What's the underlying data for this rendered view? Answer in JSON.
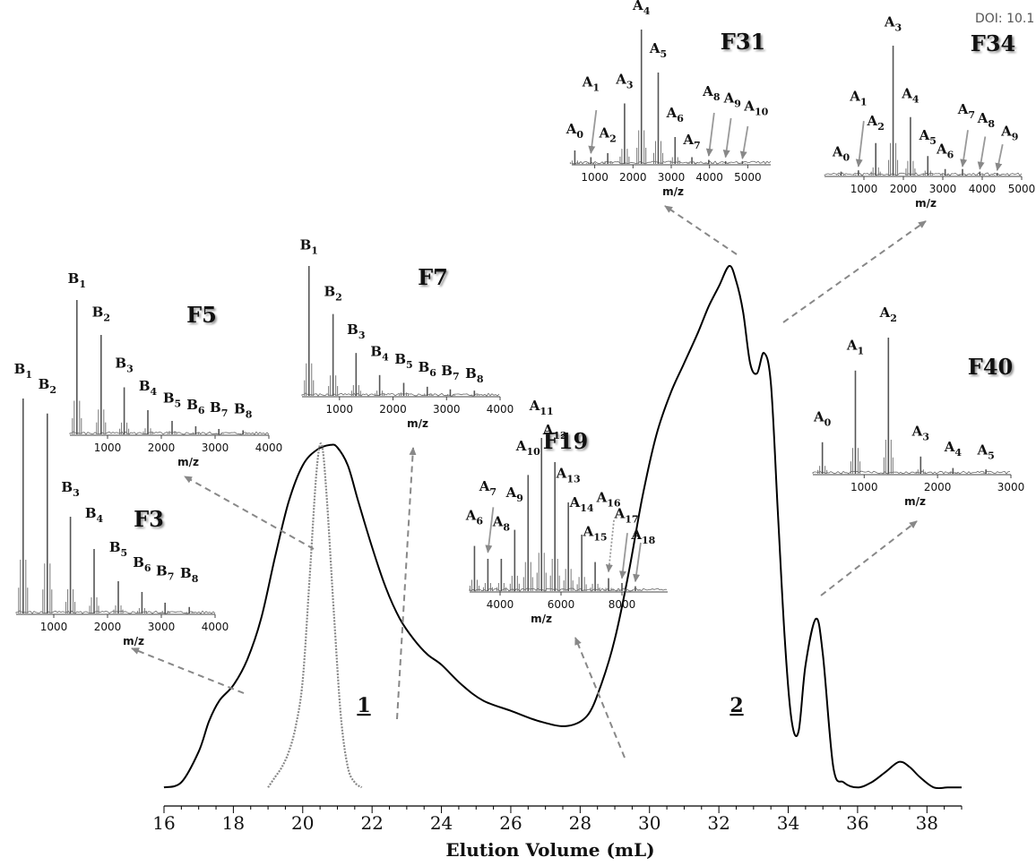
{
  "doi_text": "DOI: 10.1",
  "chart_data": [
    {
      "type": "line",
      "xlabel": "Elution Volume (mL)",
      "xlim": [
        16,
        39
      ],
      "x_ticks": [
        "16",
        "18",
        "20",
        "22",
        "24",
        "26",
        "28",
        "30",
        "32",
        "34",
        "36",
        "38"
      ],
      "grid": false,
      "peak_labels": [
        "1",
        "2"
      ],
      "series": [
        {
          "color": "#000000",
          "x": [
            16.0,
            16.5,
            17.0,
            17.3,
            17.6,
            18.0,
            18.4,
            18.8,
            19.2,
            19.6,
            20.0,
            20.4,
            20.8,
            21.0,
            21.3,
            21.6,
            22.0,
            22.4,
            22.8,
            23.2,
            23.6,
            24.0,
            24.6,
            25.2,
            26.0,
            26.8,
            27.6,
            28.2,
            28.6,
            29.0,
            29.4,
            29.8,
            30.2,
            30.6,
            31.0,
            31.4,
            31.7,
            32.0,
            32.3,
            32.5,
            32.7,
            32.9,
            33.1,
            33.3,
            33.5,
            33.7,
            33.9,
            34.1,
            34.3,
            34.5,
            34.8,
            35.0,
            35.3,
            35.6,
            36.0,
            36.4,
            36.8,
            37.2,
            37.5,
            37.8,
            38.2,
            38.6,
            39.0
          ],
          "y": [
            0.01,
            0.02,
            0.08,
            0.14,
            0.18,
            0.21,
            0.26,
            0.34,
            0.46,
            0.57,
            0.64,
            0.67,
            0.68,
            0.675,
            0.64,
            0.57,
            0.48,
            0.4,
            0.34,
            0.3,
            0.27,
            0.25,
            0.21,
            0.18,
            0.16,
            0.14,
            0.13,
            0.15,
            0.21,
            0.3,
            0.43,
            0.58,
            0.7,
            0.78,
            0.84,
            0.9,
            0.95,
            0.99,
            1.03,
            1.0,
            0.94,
            0.84,
            0.82,
            0.86,
            0.8,
            0.55,
            0.3,
            0.14,
            0.12,
            0.25,
            0.34,
            0.27,
            0.05,
            0.02,
            0.01,
            0.02,
            0.04,
            0.06,
            0.05,
            0.03,
            0.01,
            0.01,
            0.01
          ]
        },
        {
          "color": "#888888",
          "x": [
            19.0,
            19.2,
            19.4,
            19.6,
            19.8,
            20.0,
            20.2,
            20.4,
            20.55,
            20.7,
            20.9,
            21.1,
            21.3,
            21.5,
            21.7
          ],
          "y": [
            0.01,
            0.03,
            0.05,
            0.08,
            0.13,
            0.22,
            0.42,
            0.63,
            0.68,
            0.57,
            0.35,
            0.15,
            0.05,
            0.02,
            0.01
          ]
        }
      ],
      "arrows": [
        "F3",
        "F5",
        "F7",
        "F19",
        "F31",
        "F34",
        "F40"
      ]
    },
    {
      "type": "bar",
      "name": "F3",
      "title": "F3",
      "xlim": [
        300,
        4000
      ],
      "x_ticks": [
        "1000",
        "2000",
        "3000",
        "4000"
      ],
      "xlabel": "m/z",
      "peaks": [
        {
          "x": 430,
          "h": 1.0
        },
        {
          "x": 880,
          "h": 0.93
        },
        {
          "x": 1310,
          "h": 0.45
        },
        {
          "x": 1750,
          "h": 0.3
        },
        {
          "x": 2200,
          "h": 0.15
        },
        {
          "x": 2640,
          "h": 0.1
        },
        {
          "x": 3070,
          "h": 0.05
        },
        {
          "x": 3520,
          "h": 0.03
        }
      ],
      "labels": [
        {
          "base": "B",
          "sub": "1",
          "x": 430,
          "level": 1.1
        },
        {
          "base": "B",
          "sub": "2",
          "x": 880,
          "level": 1.03
        },
        {
          "base": "B",
          "sub": "3",
          "x": 1310,
          "level": 0.55
        },
        {
          "base": "B",
          "sub": "4",
          "x": 1750,
          "level": 0.43
        },
        {
          "base": "B",
          "sub": "5",
          "x": 2200,
          "level": 0.27
        },
        {
          "base": "B",
          "sub": "6",
          "x": 2640,
          "level": 0.2
        },
        {
          "base": "B",
          "sub": "7",
          "x": 3070,
          "level": 0.16
        },
        {
          "base": "B",
          "sub": "8",
          "x": 3520,
          "level": 0.15
        }
      ]
    },
    {
      "type": "bar",
      "name": "F5",
      "title": "F5",
      "xlim": [
        300,
        4000
      ],
      "x_ticks": [
        "1000",
        "2000",
        "3000",
        "4000"
      ],
      "xlabel": "m/z",
      "peaks": [
        {
          "x": 430,
          "h": 1.0
        },
        {
          "x": 880,
          "h": 0.74
        },
        {
          "x": 1310,
          "h": 0.35
        },
        {
          "x": 1750,
          "h": 0.18
        },
        {
          "x": 2200,
          "h": 0.1
        },
        {
          "x": 2640,
          "h": 0.06
        },
        {
          "x": 3070,
          "h": 0.04
        },
        {
          "x": 3520,
          "h": 0.03
        }
      ],
      "labels": [
        {
          "base": "B",
          "sub": "1",
          "x": 430,
          "level": 1.1
        },
        {
          "base": "B",
          "sub": "2",
          "x": 880,
          "level": 0.85
        },
        {
          "base": "B",
          "sub": "3",
          "x": 1310,
          "level": 0.47
        },
        {
          "base": "B",
          "sub": "4",
          "x": 1750,
          "level": 0.3
        },
        {
          "base": "B",
          "sub": "5",
          "x": 2200,
          "level": 0.21
        },
        {
          "base": "B",
          "sub": "6",
          "x": 2640,
          "level": 0.16
        },
        {
          "base": "B",
          "sub": "7",
          "x": 3070,
          "level": 0.14
        },
        {
          "base": "B",
          "sub": "8",
          "x": 3520,
          "level": 0.13
        }
      ]
    },
    {
      "type": "bar",
      "name": "F7",
      "title": "F7",
      "xlim": [
        300,
        4000
      ],
      "x_ticks": [
        "1000",
        "2000",
        "3000",
        "4000"
      ],
      "xlabel": "m/z",
      "peaks": [
        {
          "x": 430,
          "h": 1.0
        },
        {
          "x": 880,
          "h": 0.63
        },
        {
          "x": 1310,
          "h": 0.33
        },
        {
          "x": 1750,
          "h": 0.16
        },
        {
          "x": 2200,
          "h": 0.1
        },
        {
          "x": 2640,
          "h": 0.07
        },
        {
          "x": 3070,
          "h": 0.05
        },
        {
          "x": 3520,
          "h": 0.04
        }
      ],
      "labels": [
        {
          "base": "B",
          "sub": "1",
          "x": 430,
          "level": 1.1
        },
        {
          "base": "B",
          "sub": "2",
          "x": 880,
          "level": 0.74
        },
        {
          "base": "B",
          "sub": "3",
          "x": 1310,
          "level": 0.45
        },
        {
          "base": "B",
          "sub": "4",
          "x": 1750,
          "level": 0.28
        },
        {
          "base": "B",
          "sub": "5",
          "x": 2200,
          "level": 0.22
        },
        {
          "base": "B",
          "sub": "6",
          "x": 2640,
          "level": 0.16
        },
        {
          "base": "B",
          "sub": "7",
          "x": 3070,
          "level": 0.13
        },
        {
          "base": "B",
          "sub": "8",
          "x": 3520,
          "level": 0.11
        }
      ]
    },
    {
      "type": "bar",
      "name": "F19",
      "title": "F19",
      "xlim": [
        3000,
        9500
      ],
      "x_ticks": [
        "4000",
        "6000",
        "8000"
      ],
      "xlabel": "m/z",
      "peaks": [
        {
          "x": 3160,
          "h": 0.28
        },
        {
          "x": 3600,
          "h": 0.2
        },
        {
          "x": 4040,
          "h": 0.2
        },
        {
          "x": 4480,
          "h": 0.38
        },
        {
          "x": 4920,
          "h": 0.72
        },
        {
          "x": 5360,
          "h": 0.95
        },
        {
          "x": 5800,
          "h": 0.8
        },
        {
          "x": 6240,
          "h": 0.55
        },
        {
          "x": 6680,
          "h": 0.35
        },
        {
          "x": 7120,
          "h": 0.18
        },
        {
          "x": 7560,
          "h": 0.08
        },
        {
          "x": 8000,
          "h": 0.05
        },
        {
          "x": 8440,
          "h": 0.03
        }
      ],
      "labels": [
        {
          "base": "A",
          "sub": "6",
          "x": 3160,
          "level": 0.42
        },
        {
          "base": "A",
          "sub": "7",
          "x": 3600,
          "level": 0.6
        },
        {
          "base": "A",
          "sub": "8",
          "x": 4040,
          "level": 0.38
        },
        {
          "base": "A",
          "sub": "9",
          "x": 4480,
          "level": 0.56
        },
        {
          "base": "A",
          "sub": "10",
          "x": 4920,
          "level": 0.85
        },
        {
          "base": "A",
          "sub": "11",
          "x": 5360,
          "level": 1.1
        },
        {
          "base": "A",
          "sub": "12",
          "x": 5800,
          "level": 0.95
        },
        {
          "base": "A",
          "sub": "13",
          "x": 6240,
          "level": 0.68
        },
        {
          "base": "A",
          "sub": "14",
          "x": 6680,
          "level": 0.5
        },
        {
          "base": "A",
          "sub": "15",
          "x": 7120,
          "level": 0.32
        },
        {
          "base": "A",
          "sub": "16",
          "x": 7560,
          "level": 0.53
        },
        {
          "base": "A",
          "sub": "17",
          "x": 8150,
          "level": 0.43
        },
        {
          "base": "A",
          "sub": "18",
          "x": 8700,
          "level": 0.3
        }
      ],
      "arrows": [
        {
          "x": 3600,
          "from": 0.52,
          "to": 0.24
        },
        {
          "x": 7560,
          "from": 0.44,
          "to": 0.12,
          "dotted": true
        },
        {
          "x": 8000,
          "from": 0.36,
          "to": 0.08
        },
        {
          "x": 8440,
          "from": 0.3,
          "to": 0.06
        }
      ]
    },
    {
      "type": "bar",
      "name": "F31",
      "title": "F31",
      "xlim": [
        400,
        5600
      ],
      "x_ticks": [
        "1000",
        "2000",
        "3000",
        "4000",
        "5000"
      ],
      "xlabel": "m/z",
      "peaks": [
        {
          "x": 480,
          "h": 0.1
        },
        {
          "x": 900,
          "h": 0.05
        },
        {
          "x": 1340,
          "h": 0.08
        },
        {
          "x": 1780,
          "h": 0.45
        },
        {
          "x": 2220,
          "h": 1.0
        },
        {
          "x": 2660,
          "h": 0.68
        },
        {
          "x": 3100,
          "h": 0.2
        },
        {
          "x": 3540,
          "h": 0.05
        },
        {
          "x": 3980,
          "h": 0.03
        },
        {
          "x": 4420,
          "h": 0.02
        },
        {
          "x": 4860,
          "h": 0.02
        }
      ],
      "labels": [
        {
          "base": "A",
          "sub": "0",
          "x": 480,
          "level": 0.2
        },
        {
          "base": "A",
          "sub": "1",
          "x": 900,
          "level": 0.55
        },
        {
          "base": "A",
          "sub": "2",
          "x": 1340,
          "level": 0.17
        },
        {
          "base": "A",
          "sub": "3",
          "x": 1780,
          "level": 0.57
        },
        {
          "base": "A",
          "sub": "4",
          "x": 2220,
          "level": 1.12
        },
        {
          "base": "A",
          "sub": "5",
          "x": 2660,
          "level": 0.8
        },
        {
          "base": "A",
          "sub": "6",
          "x": 3100,
          "level": 0.32
        },
        {
          "base": "A",
          "sub": "7",
          "x": 3540,
          "level": 0.12
        },
        {
          "base": "A",
          "sub": "8",
          "x": 4050,
          "level": 0.48
        },
        {
          "base": "A",
          "sub": "9",
          "x": 4600,
          "level": 0.43
        },
        {
          "base": "A",
          "sub": "10",
          "x": 5220,
          "level": 0.37
        }
      ],
      "arrows": [
        {
          "x": 900,
          "from": 0.4,
          "to": 0.08
        },
        {
          "x": 3980,
          "from": 0.38,
          "to": 0.06
        },
        {
          "x": 4420,
          "from": 0.34,
          "to": 0.05
        },
        {
          "x": 4860,
          "from": 0.28,
          "to": 0.04
        }
      ]
    },
    {
      "type": "bar",
      "name": "F34",
      "title": "F34",
      "xlim": [
        0,
        5000
      ],
      "x_ticks": [
        "1000",
        "2000",
        "3000",
        "4000",
        "5000"
      ],
      "xlabel": "m/z",
      "peaks": [
        {
          "x": 420,
          "h": 0.03
        },
        {
          "x": 860,
          "h": 0.04
        },
        {
          "x": 1300,
          "h": 0.25
        },
        {
          "x": 1740,
          "h": 1.0
        },
        {
          "x": 2180,
          "h": 0.45
        },
        {
          "x": 2620,
          "h": 0.15
        },
        {
          "x": 3060,
          "h": 0.05
        },
        {
          "x": 3500,
          "h": 0.05
        },
        {
          "x": 3940,
          "h": 0.03
        },
        {
          "x": 4380,
          "h": 0.02
        }
      ],
      "labels": [
        {
          "base": "A",
          "sub": "0",
          "x": 420,
          "level": 0.12
        },
        {
          "base": "A",
          "sub": "1",
          "x": 860,
          "level": 0.55
        },
        {
          "base": "A",
          "sub": "2",
          "x": 1300,
          "level": 0.36
        },
        {
          "base": "A",
          "sub": "3",
          "x": 1740,
          "level": 1.12
        },
        {
          "base": "A",
          "sub": "4",
          "x": 2180,
          "level": 0.57
        },
        {
          "base": "A",
          "sub": "5",
          "x": 2620,
          "level": 0.25
        },
        {
          "base": "A",
          "sub": "6",
          "x": 3060,
          "level": 0.14
        },
        {
          "base": "A",
          "sub": "7",
          "x": 3600,
          "level": 0.45
        },
        {
          "base": "A",
          "sub": "8",
          "x": 4100,
          "level": 0.38
        },
        {
          "base": "A",
          "sub": "9",
          "x": 4700,
          "level": 0.28
        }
      ],
      "arrows": [
        {
          "x": 860,
          "from": 0.42,
          "to": 0.07
        },
        {
          "x": 3500,
          "from": 0.35,
          "to": 0.07
        },
        {
          "x": 3940,
          "from": 0.3,
          "to": 0.05
        },
        {
          "x": 4380,
          "from": 0.24,
          "to": 0.04
        }
      ]
    },
    {
      "type": "bar",
      "name": "F40",
      "title": "F40",
      "xlim": [
        300,
        3000
      ],
      "x_ticks": [
        "1000",
        "2000",
        "3000"
      ],
      "xlabel": "m/z",
      "peaks": [
        {
          "x": 430,
          "h": 0.22
        },
        {
          "x": 880,
          "h": 0.72
        },
        {
          "x": 1330,
          "h": 0.95
        },
        {
          "x": 1770,
          "h": 0.12
        },
        {
          "x": 2210,
          "h": 0.04
        },
        {
          "x": 2660,
          "h": 0.03
        }
      ],
      "labels": [
        {
          "base": "A",
          "sub": "0",
          "x": 430,
          "level": 0.34
        },
        {
          "base": "A",
          "sub": "1",
          "x": 880,
          "level": 0.84
        },
        {
          "base": "A",
          "sub": "2",
          "x": 1330,
          "level": 1.07
        },
        {
          "base": "A",
          "sub": "3",
          "x": 1770,
          "level": 0.24
        },
        {
          "base": "A",
          "sub": "4",
          "x": 2210,
          "level": 0.13
        },
        {
          "base": "A",
          "sub": "5",
          "x": 2660,
          "level": 0.11
        }
      ]
    }
  ]
}
